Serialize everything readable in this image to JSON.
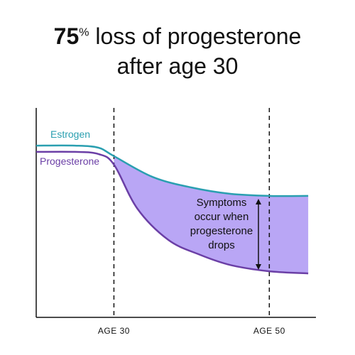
{
  "title": {
    "highlight": "75",
    "percent": "%",
    "line1_rest": " loss of progesterone",
    "line2": "after age 30"
  },
  "chart_data": {
    "type": "line",
    "series": [
      {
        "name": "Estrogen",
        "color": "#2a9fb0",
        "x": [
          20,
          25,
          28,
          30,
          35,
          40,
          45,
          50,
          55
        ],
        "y": [
          82,
          82,
          81,
          77,
          67,
          62,
          59,
          58,
          58
        ]
      },
      {
        "name": "Progesterone",
        "color": "#6b3fa6",
        "x": [
          20,
          25,
          28,
          30,
          33,
          37,
          41,
          45,
          50,
          55
        ],
        "y": [
          79,
          79,
          78,
          73,
          52,
          37,
          30,
          25,
          22,
          21
        ]
      }
    ],
    "fill_between": {
      "from_x": 30,
      "color": "#b9a6f5"
    },
    "x_ticks": [
      30,
      50
    ],
    "x_tick_labels": [
      "AGE 30",
      "AGE 50"
    ],
    "vlines": [
      30,
      50
    ],
    "annotation": [
      "Symptoms",
      "occur when",
      "progesterone",
      "drops"
    ],
    "xlim": [
      20,
      56
    ],
    "ylim": [
      0,
      100
    ],
    "grid": false,
    "legend": "inline-left"
  }
}
